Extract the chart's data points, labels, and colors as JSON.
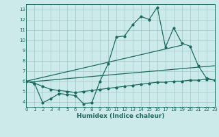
{
  "background_color": "#cceaea",
  "grid_color": "#aacccc",
  "line_color": "#1a6a60",
  "x_label": "Humidex (Indice chaleur)",
  "xlim": [
    0,
    23
  ],
  "ylim": [
    3.5,
    13.5
  ],
  "yticks": [
    4,
    5,
    6,
    7,
    8,
    9,
    10,
    11,
    12,
    13
  ],
  "xticks": [
    0,
    1,
    2,
    3,
    4,
    5,
    6,
    7,
    8,
    9,
    10,
    11,
    12,
    13,
    14,
    15,
    16,
    17,
    18,
    19,
    20,
    21,
    22,
    23
  ],
  "series1_x": [
    0,
    1,
    2,
    3,
    4,
    5,
    6,
    7,
    8,
    9,
    10,
    11,
    12,
    13,
    14,
    15,
    16,
    17,
    18,
    19,
    20,
    21,
    22,
    23
  ],
  "series1_y": [
    6.0,
    5.8,
    3.9,
    4.3,
    4.8,
    4.7,
    4.6,
    3.8,
    3.9,
    6.0,
    7.7,
    10.3,
    10.4,
    11.5,
    12.3,
    12.0,
    13.2,
    9.3,
    11.2,
    9.7,
    9.4,
    7.5,
    6.3,
    6.1
  ],
  "series2_x": [
    0,
    1,
    2,
    3,
    4,
    5,
    6,
    7,
    8,
    9,
    10,
    11,
    12,
    13,
    14,
    15,
    16,
    17,
    18,
    19,
    20,
    21,
    22,
    23
  ],
  "series2_y": [
    6.0,
    5.8,
    5.5,
    5.2,
    5.1,
    5.0,
    4.9,
    5.0,
    5.1,
    5.2,
    5.3,
    5.4,
    5.5,
    5.6,
    5.7,
    5.8,
    5.9,
    5.9,
    6.0,
    6.0,
    6.1,
    6.1,
    6.2,
    6.1
  ],
  "line1_x": [
    0,
    19
  ],
  "line1_y": [
    6.0,
    9.5
  ],
  "line2_x": [
    0,
    23
  ],
  "line2_y": [
    5.9,
    7.5
  ],
  "marker_size": 2.0,
  "line_width": 0.9,
  "font_size_ticks": 5,
  "font_size_label": 6.5
}
